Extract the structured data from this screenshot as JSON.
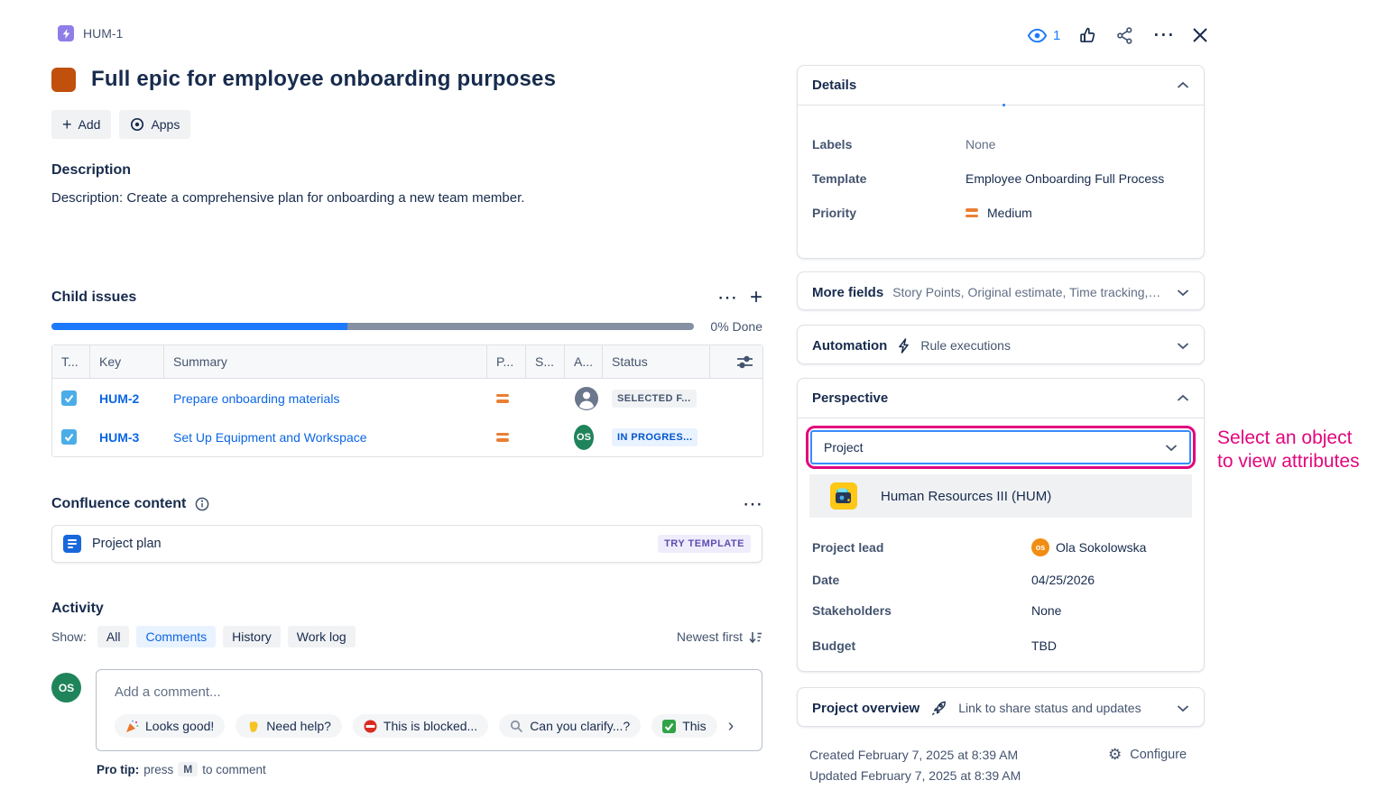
{
  "header": {
    "issue_key": "HUM-1",
    "watchers_count": "1",
    "title": "Full epic for employee onboarding purposes",
    "add_button": "Add",
    "apps_button": "Apps"
  },
  "description": {
    "heading": "Description",
    "body": "Description: Create a comprehensive plan for onboarding a new team member."
  },
  "child_issues": {
    "heading": "Child issues",
    "progress_done_label": "0% Done",
    "progress_visual_percent": 46,
    "columns": {
      "type": "T...",
      "key": "Key",
      "summary": "Summary",
      "priority": "P...",
      "sprint": "S...",
      "assignee": "A...",
      "status": "Status"
    },
    "rows": [
      {
        "key": "HUM-2",
        "summary": "Prepare onboarding materials",
        "priority": "Medium",
        "assignee_initials": "",
        "status": "SELECTED F...",
        "status_style": "gray"
      },
      {
        "key": "HUM-3",
        "summary": "Set Up Equipment and Workspace",
        "priority": "Medium",
        "assignee_initials": "OS",
        "status": "IN PROGRES...",
        "status_style": "blue"
      }
    ]
  },
  "confluence": {
    "heading": "Confluence content",
    "page_title": "Project plan",
    "badge": "TRY TEMPLATE"
  },
  "activity": {
    "heading": "Activity",
    "show_label": "Show:",
    "filter_all": "All",
    "filter_comments": "Comments",
    "filter_history": "History",
    "filter_worklog": "Work log",
    "sort_label": "Newest first",
    "commenter_initials": "OS",
    "comment_placeholder": "Add a comment...",
    "quick_replies": [
      {
        "icon": "party-popper-icon",
        "label": "Looks good!"
      },
      {
        "icon": "waving-hand-icon",
        "label": "Need help?"
      },
      {
        "icon": "no-entry-icon",
        "label": "This is blocked..."
      },
      {
        "icon": "magnifier-icon",
        "label": "Can you clarify...?"
      },
      {
        "icon": "check-mark-icon",
        "label": "This"
      }
    ],
    "pro_tip": {
      "prefix": "Pro tip:",
      "press": "press",
      "key": "M",
      "suffix": "to comment"
    }
  },
  "details": {
    "title": "Details",
    "labels_label": "Labels",
    "labels_value": "None",
    "template_label": "Template",
    "template_value": "Employee Onboarding Full Process",
    "priority_label": "Priority",
    "priority_value": "Medium"
  },
  "more_fields": {
    "title": "More fields",
    "summary": "Story Points, Original estimate, Time tracking, Co..."
  },
  "automation": {
    "title": "Automation",
    "summary": "Rule executions"
  },
  "perspective": {
    "title": "Perspective",
    "object_type_value": "Project",
    "selected_object": "Human Resources III (HUM)",
    "lead_label": "Project lead",
    "lead_value": "Ola Sokolowska",
    "lead_initials": "os",
    "date_label": "Date",
    "date_value": "04/25/2026",
    "stakeholders_label": "Stakeholders",
    "stakeholders_value": "None",
    "budget_label": "Budget",
    "budget_value": "TBD"
  },
  "project_overview": {
    "title": "Project overview",
    "summary": "Link to share status and updates"
  },
  "meta": {
    "created": "Created February 7, 2025 at 8:39 AM",
    "updated": "Updated February 7, 2025 at 8:39 AM",
    "configure": "Configure"
  },
  "annotation": {
    "line1": "Select an object",
    "line2": "to view attributes",
    "color": "#E2067E"
  },
  "icons": {
    "plus": "+",
    "ellipsis": "⋯",
    "gear": "⚙",
    "chevron_right": "›"
  },
  "colors": {
    "accent_blue": "#0C66E4",
    "focus_blue": "#388BFF",
    "annotation_pink": "#E2067E",
    "priority_medium_orange": "#E97F33",
    "epic_purple": "#8F7EE7",
    "title_icon_orange": "#C0500C",
    "avatar_green": "#1F845A",
    "avatar_orange": "#F18D13",
    "status_inprogress_bg": "#E9F2FF",
    "status_inprogress_text": "#0055CC"
  }
}
